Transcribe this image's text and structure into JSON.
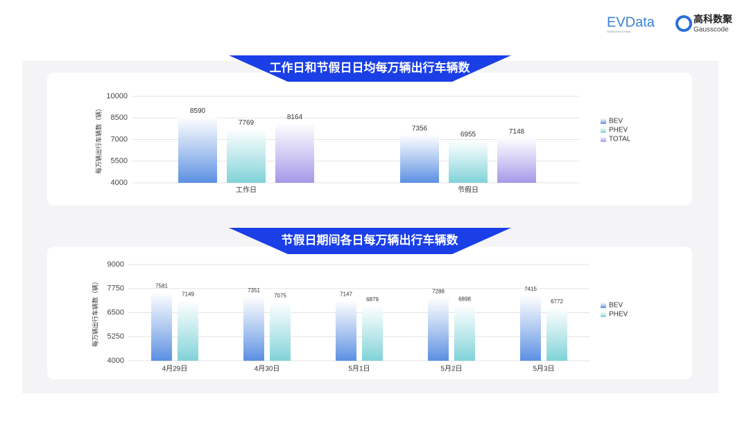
{
  "header": {
    "logo_left": "EVData",
    "logo_left_sub": "SHANGHAI CHINA",
    "logo_right": "高科数聚",
    "logo_right_sub": "Gausscode"
  },
  "chart_data": [
    {
      "type": "bar",
      "title": "工作日和节假日日均每万辆出行车辆数",
      "y_label": "每万辆出行车辆数（辆）",
      "categories": [
        "工作日",
        "节假日"
      ],
      "series": [
        {
          "name": "BEV",
          "color": "#5a8fe2",
          "values": [
            8590,
            7356
          ]
        },
        {
          "name": "PHEV",
          "color": "#7fd2d8",
          "values": [
            7769,
            6955
          ]
        },
        {
          "name": "TOTAL",
          "color": "#a597e8",
          "values": [
            8164,
            7148
          ]
        }
      ],
      "ylim": [
        4000,
        10000
      ],
      "yticks": [
        4000,
        5500,
        7000,
        8500,
        10000
      ],
      "grid": true,
      "legend": "right"
    },
    {
      "type": "bar",
      "title": "节假日期间各日每万辆出行车辆数",
      "y_label": "每万辆出行车辆数（辆）",
      "categories": [
        "4月29日",
        "4月30日",
        "5月1日",
        "5月2日",
        "5月3日"
      ],
      "series": [
        {
          "name": "BEV",
          "color": "#5a8fe2",
          "values": [
            7581,
            7351,
            7147,
            7288,
            7415
          ]
        },
        {
          "name": "PHEV",
          "color": "#7fd2d8",
          "values": [
            7149,
            7075,
            6879,
            6898,
            6772
          ]
        }
      ],
      "ylim": [
        4000,
        9000
      ],
      "yticks": [
        4000,
        5250,
        6500,
        7750,
        9000
      ],
      "grid": true,
      "legend": "right"
    }
  ]
}
